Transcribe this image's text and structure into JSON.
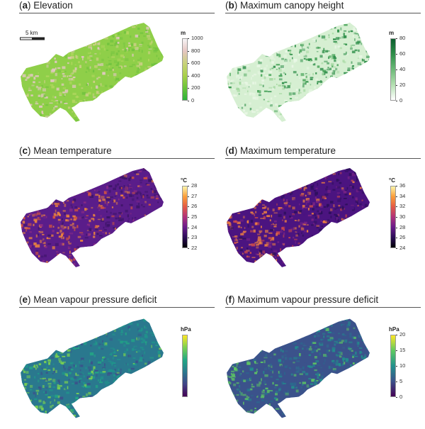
{
  "panels": [
    {
      "letter": "a",
      "title": "Elevation",
      "unit": "m",
      "ticks": [
        "1000",
        "800",
        "600",
        "400",
        "200",
        "0"
      ],
      "colors": [
        "#f7f4f6",
        "#e6c6c2",
        "#c8d27a",
        "#a9d04a",
        "#6bc43b",
        "#2db33a"
      ],
      "texture": [
        "#8fcf49",
        "#b2d660",
        "#d3cf8d",
        "#e3c8c3",
        "#72c33f"
      ],
      "scalebar": "5 km"
    },
    {
      "letter": "b",
      "title": "Maximum canopy height",
      "unit": "m",
      "ticks": [
        "80",
        "60",
        "40",
        "20",
        "0"
      ],
      "colors": [
        "#0b5e2e",
        "#2f8f4a",
        "#6dba79",
        "#b4e0b1",
        "#ffffff"
      ],
      "texture": [
        "#d6efd2",
        "#a4d8a0",
        "#4aa55a",
        "#eaf7e6",
        "#2f8f4a"
      ]
    },
    {
      "letter": "c",
      "title": "Mean temperature",
      "unit": "°C",
      "ticks": [
        "28",
        "27",
        "26",
        "25",
        "24",
        "23",
        "22"
      ],
      "colors": [
        "#fcf5a9",
        "#fb9e3a",
        "#e35a45",
        "#b0327a",
        "#6a1b8a",
        "#2b0d57",
        "#000004"
      ],
      "texture": [
        "#5a1d8a",
        "#8a2b85",
        "#d8573b",
        "#f0883c",
        "#3c1468"
      ]
    },
    {
      "letter": "d",
      "title": "Maximum temperature",
      "unit": "°C",
      "ticks": [
        "36",
        "34",
        "32",
        "30",
        "28",
        "26",
        "24"
      ],
      "colors": [
        "#fcf5a9",
        "#fb9e3a",
        "#e35a45",
        "#b0327a",
        "#6a1b8a",
        "#2b0d57",
        "#000004"
      ],
      "texture": [
        "#4b1480",
        "#7d2585",
        "#cc4a4a",
        "#ee8040",
        "#2e0f5c"
      ]
    },
    {
      "letter": "e",
      "title": "Mean vapour pressure deficit",
      "unit": "hPa",
      "ticks": [],
      "colors": [
        "#fde725",
        "#7ad151",
        "#22a884",
        "#2a788e",
        "#414487",
        "#440154"
      ],
      "texture": [
        "#2a788e",
        "#22a884",
        "#3b528b",
        "#7ad151",
        "#1f968b"
      ]
    },
    {
      "letter": "f",
      "title": "Maximum vapour pressure deficit",
      "unit": "hPa",
      "ticks": [
        "20",
        "15",
        "10",
        "5",
        "0"
      ],
      "colors": [
        "#fde725",
        "#5ec962",
        "#21918c",
        "#3b528b",
        "#440154"
      ],
      "texture": [
        "#3b528b",
        "#2a6a8e",
        "#31688e",
        "#5ec962",
        "#21918c"
      ]
    }
  ]
}
